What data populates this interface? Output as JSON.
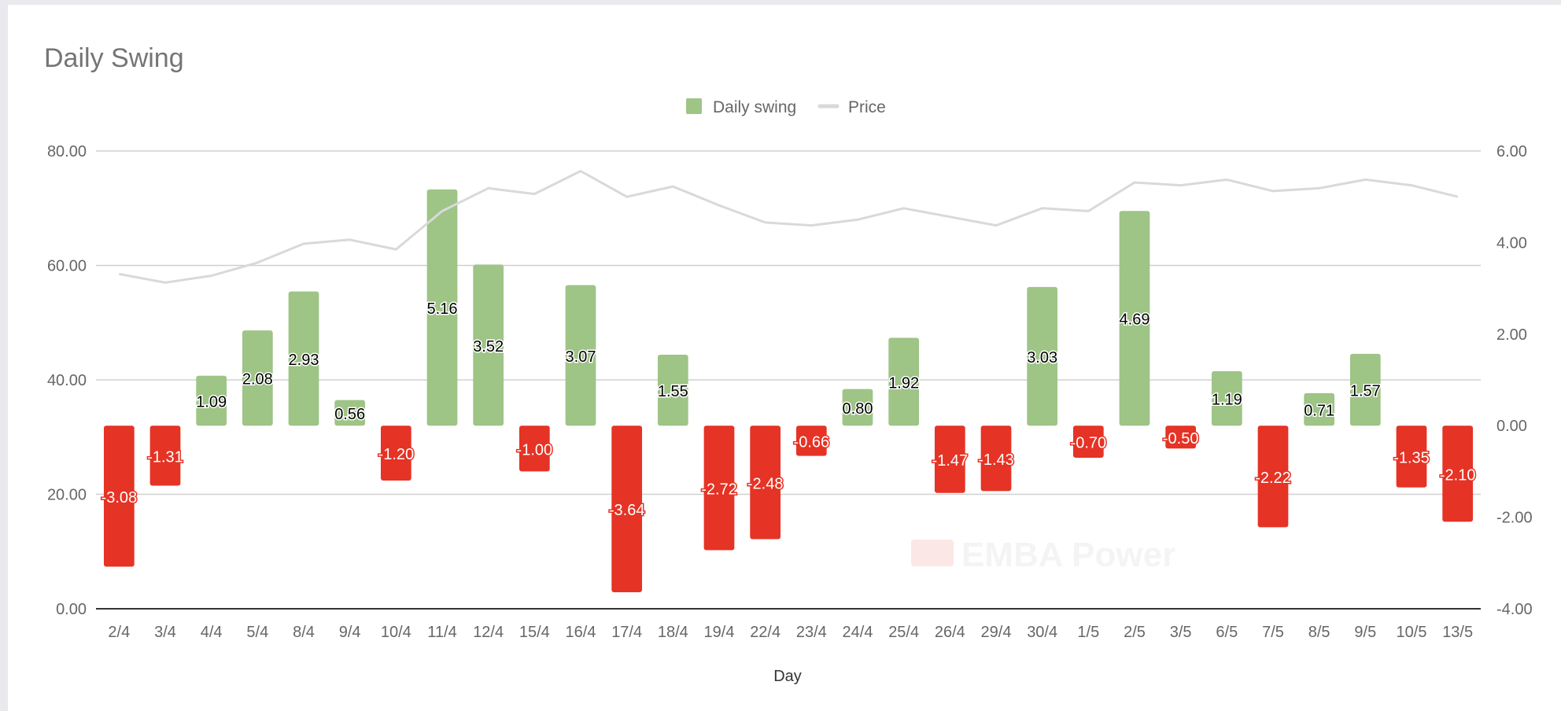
{
  "chart_data": {
    "type": "bar",
    "title": "Daily Swing",
    "xlabel": "Day",
    "ylabel": "",
    "y2label": "",
    "ylim": [
      0,
      80
    ],
    "y2lim": [
      -4,
      6
    ],
    "yticks": [
      "0.00",
      "20.00",
      "40.00",
      "60.00",
      "80.00"
    ],
    "y2ticks": [
      "-4.00",
      "-2.00",
      "0.00",
      "2.00",
      "4.00",
      "6.00"
    ],
    "grid": true,
    "legend_position": "top-center",
    "categories": [
      "2/4",
      "3/4",
      "4/4",
      "5/4",
      "8/4",
      "9/4",
      "10/4",
      "11/4",
      "12/4",
      "15/4",
      "16/4",
      "17/4",
      "18/4",
      "19/4",
      "22/4",
      "23/4",
      "24/4",
      "25/4",
      "26/4",
      "29/4",
      "30/4",
      "1/5",
      "2/5",
      "3/5",
      "6/5",
      "7/5",
      "8/5",
      "9/5",
      "10/5",
      "13/5"
    ],
    "series": [
      {
        "name": "Daily swing",
        "type": "bar",
        "axis": "right",
        "values": [
          -3.08,
          -1.31,
          1.09,
          2.08,
          2.93,
          0.56,
          -1.2,
          5.16,
          3.52,
          -1.0,
          3.07,
          -3.64,
          1.55,
          -2.72,
          -2.48,
          -0.66,
          0.8,
          1.92,
          -1.47,
          -1.43,
          3.03,
          -0.7,
          4.69,
          -0.5,
          1.19,
          -2.22,
          0.71,
          1.57,
          -1.35,
          -2.1
        ],
        "labels": [
          "-3.08",
          "-1.31",
          "1.09",
          "2.08",
          "2.93",
          "0.56",
          "-1.20",
          "5.16",
          "3.52",
          "-1.00",
          "3.07",
          "-3.64",
          "1.55",
          "-2.72",
          "-2.48",
          "-0.66",
          "0.80",
          "1.92",
          "-1.47",
          "-1.43",
          "3.03",
          "-0.70",
          "4.69",
          "-0.50",
          "1.19",
          "-2.22",
          "0.71",
          "1.57",
          "-1.35",
          "-2.10"
        ]
      },
      {
        "name": "Price",
        "type": "line",
        "axis": "left",
        "values": [
          58.5,
          57.0,
          58.2,
          60.5,
          63.8,
          64.5,
          62.8,
          69.5,
          73.5,
          72.5,
          76.5,
          72.0,
          73.8,
          70.5,
          67.5,
          67.0,
          68.0,
          70.0,
          68.5,
          67.0,
          70.0,
          69.5,
          74.5,
          74.0,
          75.0,
          73.0,
          73.5,
          75.0,
          74.0,
          72.0
        ]
      }
    ],
    "colors": {
      "positive": "#9ec486",
      "negative": "#e53325",
      "price_line": "#d9d9d9",
      "grid": "#d0d0d0",
      "axis": "#333333",
      "text": "#666666",
      "title": "#757575"
    }
  },
  "watermark": "EMBA Power"
}
